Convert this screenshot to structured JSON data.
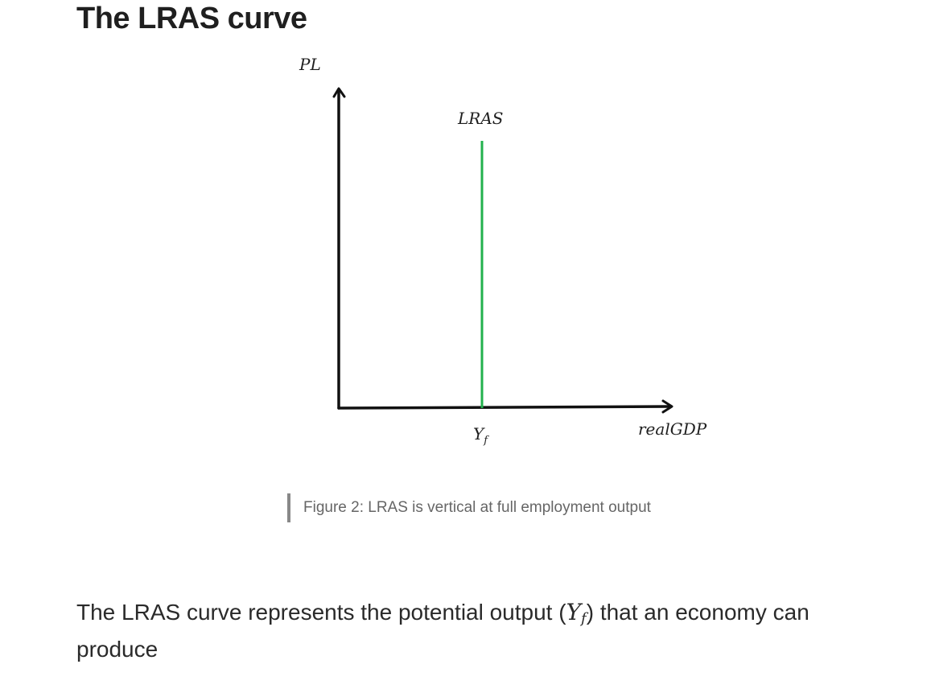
{
  "heading": "The LRAS curve",
  "figure": {
    "y_axis_label": "PL",
    "x_axis_label": "realGDP",
    "curve_label": "LRAS",
    "tick_label_main": "Y",
    "tick_label_sub": "f",
    "curve_color": "#22b14c",
    "axis_color": "#111111"
  },
  "caption": "Figure 2: LRAS is vertical at full employment output",
  "paragraph": {
    "before": "The LRAS curve represents the potential output (",
    "math_main": "Y",
    "math_sub": "f",
    "after": ") that an economy can produce"
  }
}
